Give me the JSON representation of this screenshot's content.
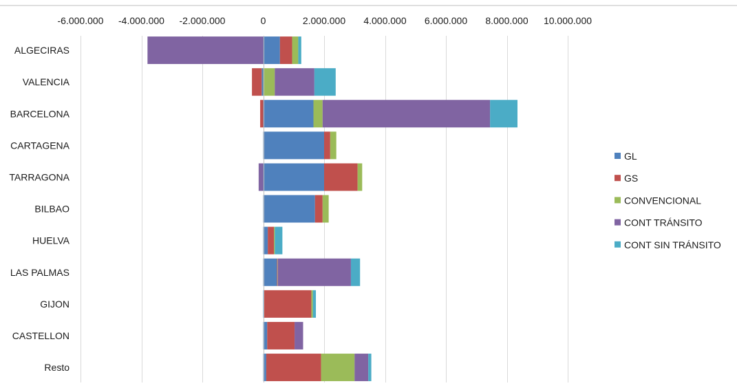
{
  "chart_data": {
    "type": "bar",
    "orientation": "horizontal",
    "stacked": true,
    "title": "",
    "xlabel": "",
    "ylabel": "",
    "xlim": [
      -6000000,
      10000000
    ],
    "x_ticks": [
      -6000000,
      -4000000,
      -2000000,
      0,
      2000000,
      4000000,
      6000000,
      8000000,
      10000000
    ],
    "x_tick_labels": [
      "-6.000.000",
      "-4.000.000",
      "-2.000.000",
      "0",
      "2.000.000",
      "4.000.000",
      "6.000.000",
      "8.000.000",
      "10.000.000"
    ],
    "grid": true,
    "legend_position": "right",
    "categories": [
      "ALGECIRAS",
      "VALENCIA",
      "BARCELONA",
      "CARTAGENA",
      "TARRAGONA",
      "BILBAO",
      "HUELVA",
      "LAS PALMAS",
      "GIJON",
      "CASTELLON",
      "Resto"
    ],
    "series": [
      {
        "name": "GL",
        "color": "#4F81BD",
        "values": [
          550000,
          -50000,
          1650000,
          2000000,
          2000000,
          1700000,
          150000,
          450000,
          30000,
          130000,
          100000
        ]
      },
      {
        "name": "GS",
        "color": "#C0504D",
        "values": [
          400000,
          -320000,
          -100000,
          200000,
          1100000,
          250000,
          200000,
          20000,
          1550000,
          900000,
          1800000
        ]
      },
      {
        "name": "CONVENCIONAL",
        "color": "#9BBB59",
        "values": [
          200000,
          380000,
          300000,
          200000,
          150000,
          200000,
          30000,
          10000,
          50000,
          0,
          1100000
        ]
      },
      {
        "name": "CONT TRÁNSITO",
        "color": "#8064A2",
        "values": [
          -3800000,
          1300000,
          5500000,
          0,
          -150000,
          0,
          0,
          2400000,
          0,
          280000,
          450000
        ]
      },
      {
        "name": "CONT SIN TRÁNSITO",
        "color": "#4BACC6",
        "values": [
          100000,
          700000,
          900000,
          0,
          0,
          0,
          250000,
          300000,
          100000,
          0,
          100000
        ]
      }
    ]
  }
}
